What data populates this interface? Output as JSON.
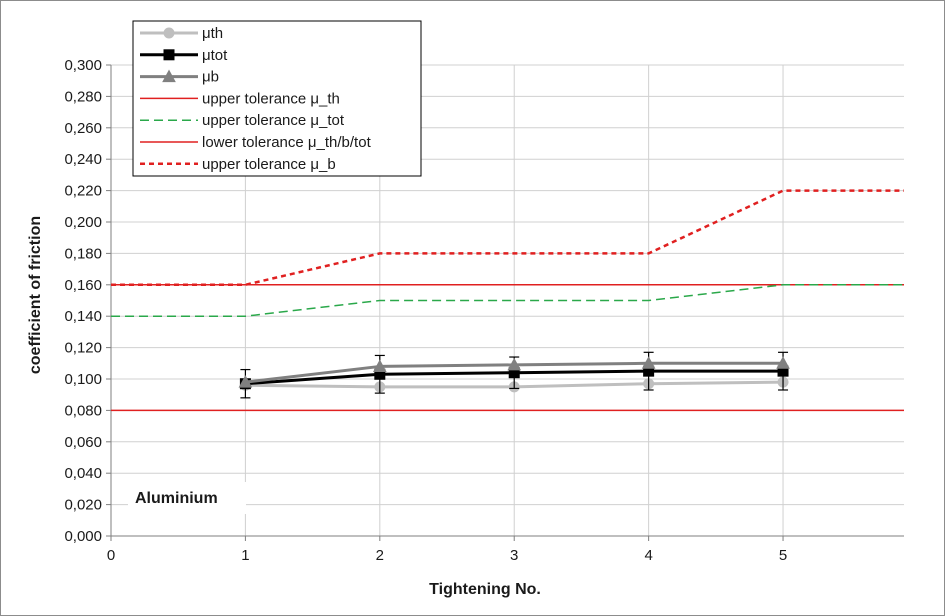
{
  "chart_data": {
    "type": "line",
    "title": "",
    "xlabel": "Tightening No.",
    "ylabel": "coefficient of friction",
    "xlim": [
      0,
      5.9
    ],
    "ylim": [
      0,
      0.3
    ],
    "x_ticks": [
      0,
      1,
      2,
      3,
      4,
      5
    ],
    "x_tick_labels": [
      "0",
      "1",
      "2",
      "3",
      "4",
      "5"
    ],
    "y_ticks": [
      0,
      0.02,
      0.04,
      0.06,
      0.08,
      0.1,
      0.12,
      0.14,
      0.16,
      0.18,
      0.2,
      0.22,
      0.24,
      0.26,
      0.28,
      0.3
    ],
    "y_tick_labels": [
      "0,000",
      "0,020",
      "0,040",
      "0,060",
      "0,080",
      "0,100",
      "0,120",
      "0,140",
      "0,160",
      "0,180",
      "0,200",
      "0,220",
      "0,240",
      "0,260",
      "0,280",
      "0,300"
    ],
    "grid": true,
    "legend_position": "top-left",
    "annotation": "Aluminium",
    "series": [
      {
        "name": "μth",
        "x": [
          1,
          2,
          3,
          4,
          5
        ],
        "y": [
          0.096,
          0.095,
          0.095,
          0.097,
          0.098
        ],
        "color": "#bfbfbf",
        "marker": "circle",
        "style": "solid"
      },
      {
        "name": "μtot",
        "x": [
          1,
          2,
          3,
          4,
          5
        ],
        "y": [
          0.097,
          0.103,
          0.104,
          0.105,
          0.105
        ],
        "error": [
          0.009,
          0.012,
          0.01,
          0.012,
          0.012
        ],
        "color": "#000000",
        "marker": "square",
        "style": "solid"
      },
      {
        "name": "μb",
        "x": [
          1,
          2,
          3,
          4,
          5
        ],
        "y": [
          0.098,
          0.108,
          0.109,
          0.11,
          0.11
        ],
        "color": "#808080",
        "marker": "triangle",
        "style": "solid"
      },
      {
        "name": "upper tolerance μ_th",
        "x": [
          0,
          5.9
        ],
        "y": [
          0.16,
          0.16
        ],
        "color": "#e02020",
        "style": "solid"
      },
      {
        "name": "upper tolerance μ_tot",
        "x": [
          0,
          1,
          2,
          3,
          4,
          5,
          5.9
        ],
        "y": [
          0.14,
          0.14,
          0.15,
          0.15,
          0.15,
          0.16,
          0.16
        ],
        "color": "#2aa84a",
        "style": "dashed"
      },
      {
        "name": "lower tolerance μ_th/b/tot",
        "x": [
          0,
          5.9
        ],
        "y": [
          0.08,
          0.08
        ],
        "color": "#e02020",
        "style": "solid"
      },
      {
        "name": "upper tolerance μ_b",
        "x": [
          0,
          1,
          2,
          3,
          4,
          5,
          5.9
        ],
        "y": [
          0.16,
          0.16,
          0.18,
          0.18,
          0.18,
          0.22,
          0.22
        ],
        "color": "#e02020",
        "style": "dotted"
      }
    ]
  }
}
